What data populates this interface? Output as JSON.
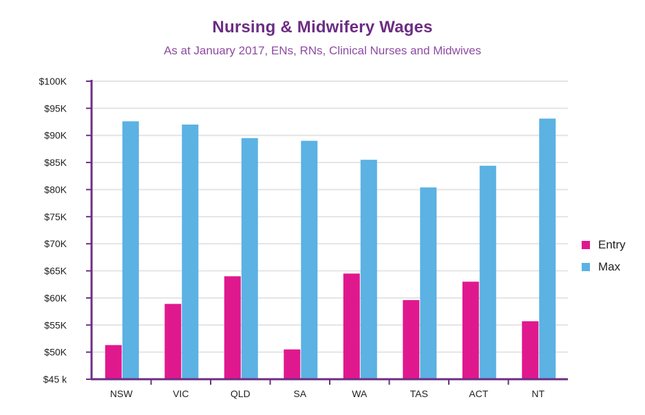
{
  "title": "Nursing & Midwifery Wages",
  "subtitle": "As at January 2017, ENs, RNs, Clinical Nurses and Midwives",
  "colors": {
    "entry": "#e0188e",
    "max": "#5bb2e3",
    "axis": "#6b2d83",
    "grid": "#e4e4e4",
    "title": "#6b2d83",
    "subtitle": "#8e4ba3"
  },
  "chart_data": {
    "type": "bar",
    "title": "Nursing & Midwifery Wages",
    "subtitle": "As at January 2017, ENs, RNs, Clinical Nurses and Midwives",
    "xlabel": "",
    "ylabel": "",
    "categories": [
      "NSW",
      "VIC",
      "QLD",
      "SA",
      "WA",
      "TAS",
      "ACT",
      "NT"
    ],
    "series": [
      {
        "name": "Entry",
        "values": [
          51.3,
          58.9,
          64.0,
          50.5,
          64.5,
          59.6,
          63.0,
          55.7
        ]
      },
      {
        "name": "Max",
        "values": [
          92.6,
          92.0,
          89.5,
          89.0,
          85.5,
          80.4,
          84.4,
          93.1
        ]
      }
    ],
    "ylim": [
      45,
      100
    ],
    "yticks": [
      45,
      50,
      55,
      60,
      65,
      70,
      75,
      80,
      85,
      90,
      95,
      100
    ],
    "ytick_labels": [
      "$45 k",
      "$50K",
      "$55K",
      "$60K",
      "$65K",
      "$70K",
      "$75K",
      "$80K",
      "$85K",
      "$90K",
      "$95K",
      "$100K"
    ],
    "grid": true,
    "legend_position": "right"
  }
}
